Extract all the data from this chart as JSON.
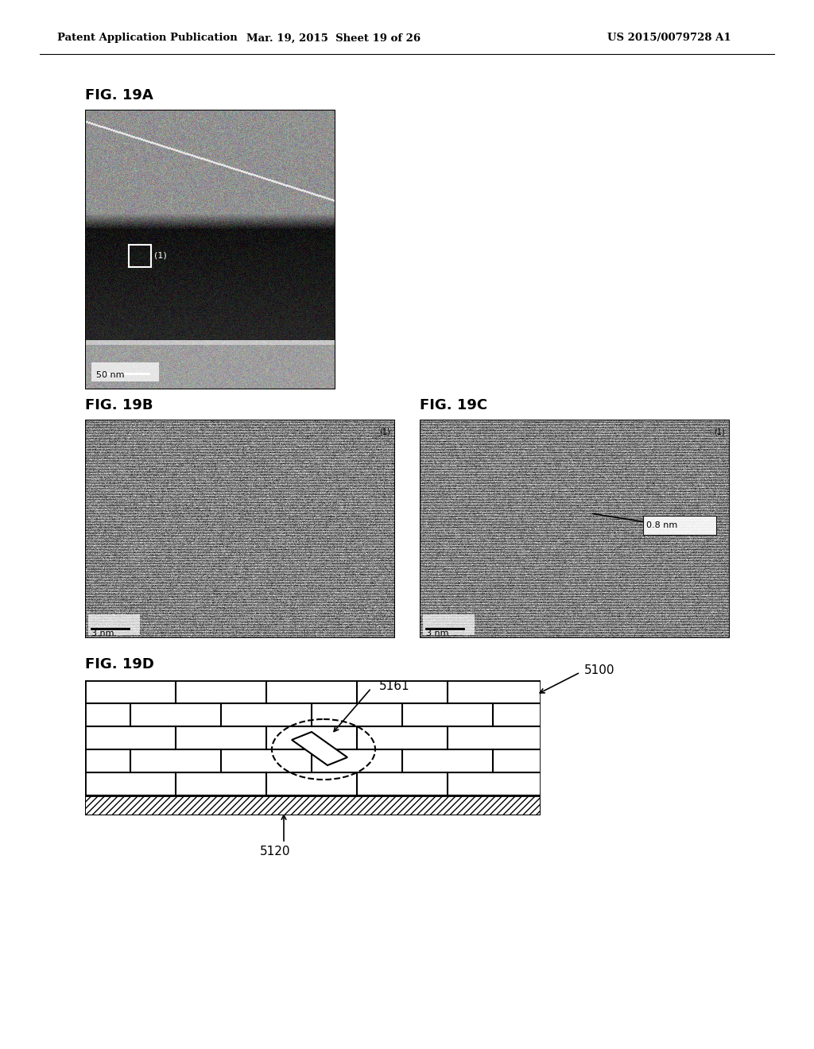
{
  "page_title_left": "Patent Application Publication",
  "page_title_center": "Mar. 19, 2015  Sheet 19 of 26",
  "page_title_right": "US 2015/0079728 A1",
  "fig19a_label": "FIG. 19A",
  "fig19b_label": "FIG. 19B",
  "fig19c_label": "FIG. 19C",
  "fig19d_label": "FIG. 19D",
  "label_5161": "5161",
  "label_5100": "5100",
  "label_5120": "5120",
  "scale_50nm": "50 nm",
  "scale_3nm_b": "3 nm",
  "scale_3nm_c": "3 nm",
  "annotation_08nm": "0.8 nm",
  "bg_color": "#ffffff",
  "text_color": "#000000"
}
